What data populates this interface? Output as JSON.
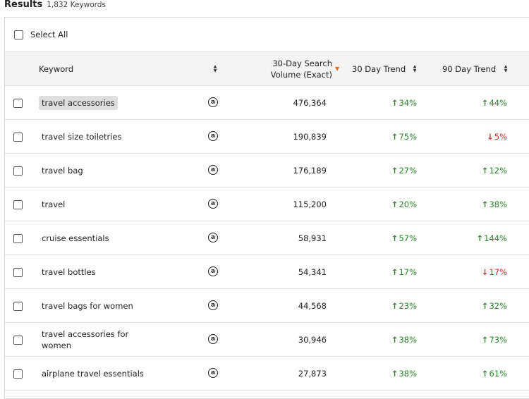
{
  "results": {
    "title": "Results",
    "count_label": "1,832 Keywords"
  },
  "select_all": {
    "label": "Select All"
  },
  "columns": {
    "keyword": "Keyword",
    "volume_line1": "30-Day Search",
    "volume_line2": "Volume (Exact)",
    "trend30": "30 Day Trend",
    "trend90": "90 Day Trend"
  },
  "icons": {
    "sort": "sort-updown-icon",
    "sort_active": "sort-desc-icon",
    "amazon": "amazon-icon",
    "up": "arrow-up-icon",
    "down": "arrow-down-icon"
  },
  "colors": {
    "up": "#2a8a2a",
    "down": "#d32f2f",
    "sort_active": "#e36b2c",
    "header_bg": "#f4f4f4"
  },
  "rows": [
    {
      "keyword": "travel accessories",
      "volume": "476,364",
      "trend30": "34%",
      "trend30_dir": "up",
      "trend90": "44%",
      "trend90_dir": "up",
      "highlighted": true
    },
    {
      "keyword": "travel size toiletries",
      "volume": "190,839",
      "trend30": "75%",
      "trend30_dir": "up",
      "trend90": "5%",
      "trend90_dir": "down"
    },
    {
      "keyword": "travel bag",
      "volume": "176,189",
      "trend30": "27%",
      "trend30_dir": "up",
      "trend90": "12%",
      "trend90_dir": "up"
    },
    {
      "keyword": "travel",
      "volume": "115,200",
      "trend30": "20%",
      "trend30_dir": "up",
      "trend90": "38%",
      "trend90_dir": "up"
    },
    {
      "keyword": "cruise essentials",
      "volume": "58,931",
      "trend30": "57%",
      "trend30_dir": "up",
      "trend90": "144%",
      "trend90_dir": "up"
    },
    {
      "keyword": "travel bottles",
      "volume": "54,341",
      "trend30": "17%",
      "trend30_dir": "up",
      "trend90": "17%",
      "trend90_dir": "down"
    },
    {
      "keyword": "travel bags for women",
      "volume": "44,568",
      "trend30": "23%",
      "trend30_dir": "up",
      "trend90": "32%",
      "trend90_dir": "up"
    },
    {
      "keyword": "travel accessories for women",
      "volume": "30,946",
      "trend30": "38%",
      "trend30_dir": "up",
      "trend90": "73%",
      "trend90_dir": "up"
    },
    {
      "keyword": "airplane travel essentials",
      "volume": "27,873",
      "trend30": "38%",
      "trend30_dir": "up",
      "trend90": "61%",
      "trend90_dir": "up"
    }
  ]
}
